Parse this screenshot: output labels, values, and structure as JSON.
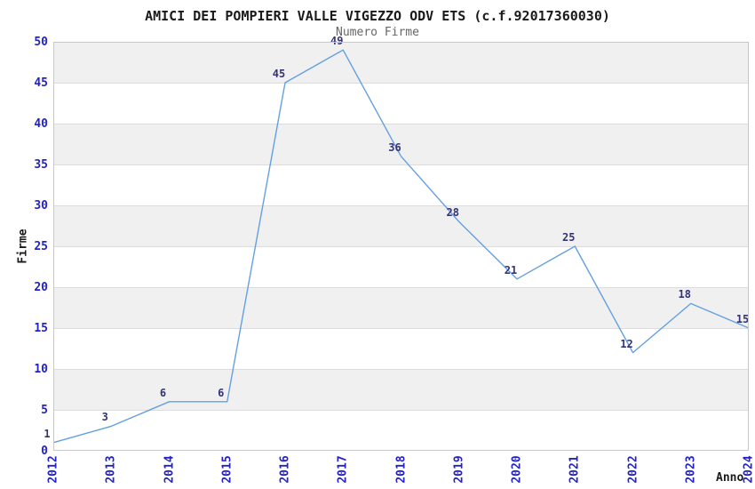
{
  "chart_data": {
    "type": "line",
    "title": "AMICI DEI POMPIERI VALLE VIGEZZO ODV ETS (c.f.92017360030)",
    "subtitle": "Numero Firme",
    "xlabel": "Anno",
    "ylabel": "Firme",
    "categories": [
      "2012",
      "2013",
      "2014",
      "2015",
      "2016",
      "2017",
      "2018",
      "2019",
      "2020",
      "2021",
      "2022",
      "2023",
      "2024"
    ],
    "series": [
      {
        "name": "Numero Firme",
        "values": [
          1,
          3,
          6,
          6,
          45,
          49,
          36,
          28,
          21,
          25,
          12,
          18,
          15
        ]
      }
    ],
    "ylim": [
      0,
      50
    ],
    "y_ticks": [
      0,
      5,
      10,
      15,
      20,
      25,
      30,
      35,
      40,
      45,
      50
    ],
    "grid": "horizontal",
    "alternating_bands": true,
    "legend_position": "none",
    "show_point_labels": true,
    "colors": {
      "line": "#64a0e1",
      "axis_tick_label": "#2222cc",
      "point_label": "#333377",
      "band_fill": "#f0f0f0",
      "gridline": "#dcdcdc",
      "plot_border": "#c8c8c8",
      "plot_background": "#ffffff",
      "page_background": "#ffffff",
      "title": "#1a1a1a",
      "subtitle": "#666666",
      "axis_title": "#1a1a1a"
    }
  }
}
